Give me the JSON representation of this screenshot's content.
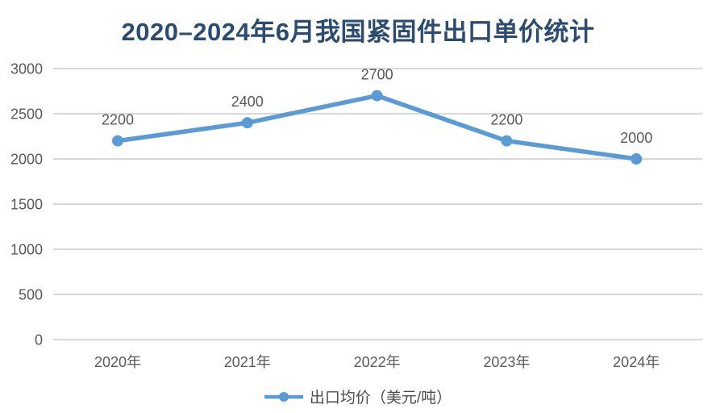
{
  "title": "2020–2024年6月我国紧固件出口单价统计",
  "legend": {
    "label": "出口均价（美元/吨）"
  },
  "chart_data": {
    "type": "line",
    "title": "2020–2024年6月我国紧固件出口单价统计",
    "categories": [
      "2020年",
      "2021年",
      "2022年",
      "2023年",
      "2024年"
    ],
    "series": [
      {
        "name": "出口均价（美元/吨）",
        "values": [
          2200,
          2400,
          2700,
          2200,
          2000
        ]
      }
    ],
    "data_labels": [
      "2200",
      "2400",
      "2700",
      "2200",
      "2000"
    ],
    "xlabel": "",
    "ylabel": "",
    "ylim": [
      0,
      3000
    ],
    "yticks": [
      0,
      500,
      1000,
      1500,
      2000,
      2500,
      3000
    ],
    "grid": true,
    "legend_position": "bottom",
    "colors": {
      "line": "#5B9BD5",
      "marker": "#5B9BD5",
      "grid": "#D9D9D9",
      "axis_text": "#595959",
      "data_label_text": "#595959",
      "title_text": "#2B4C70",
      "legend_text": "#4D4D4D",
      "background": "#FFFFFF"
    }
  }
}
